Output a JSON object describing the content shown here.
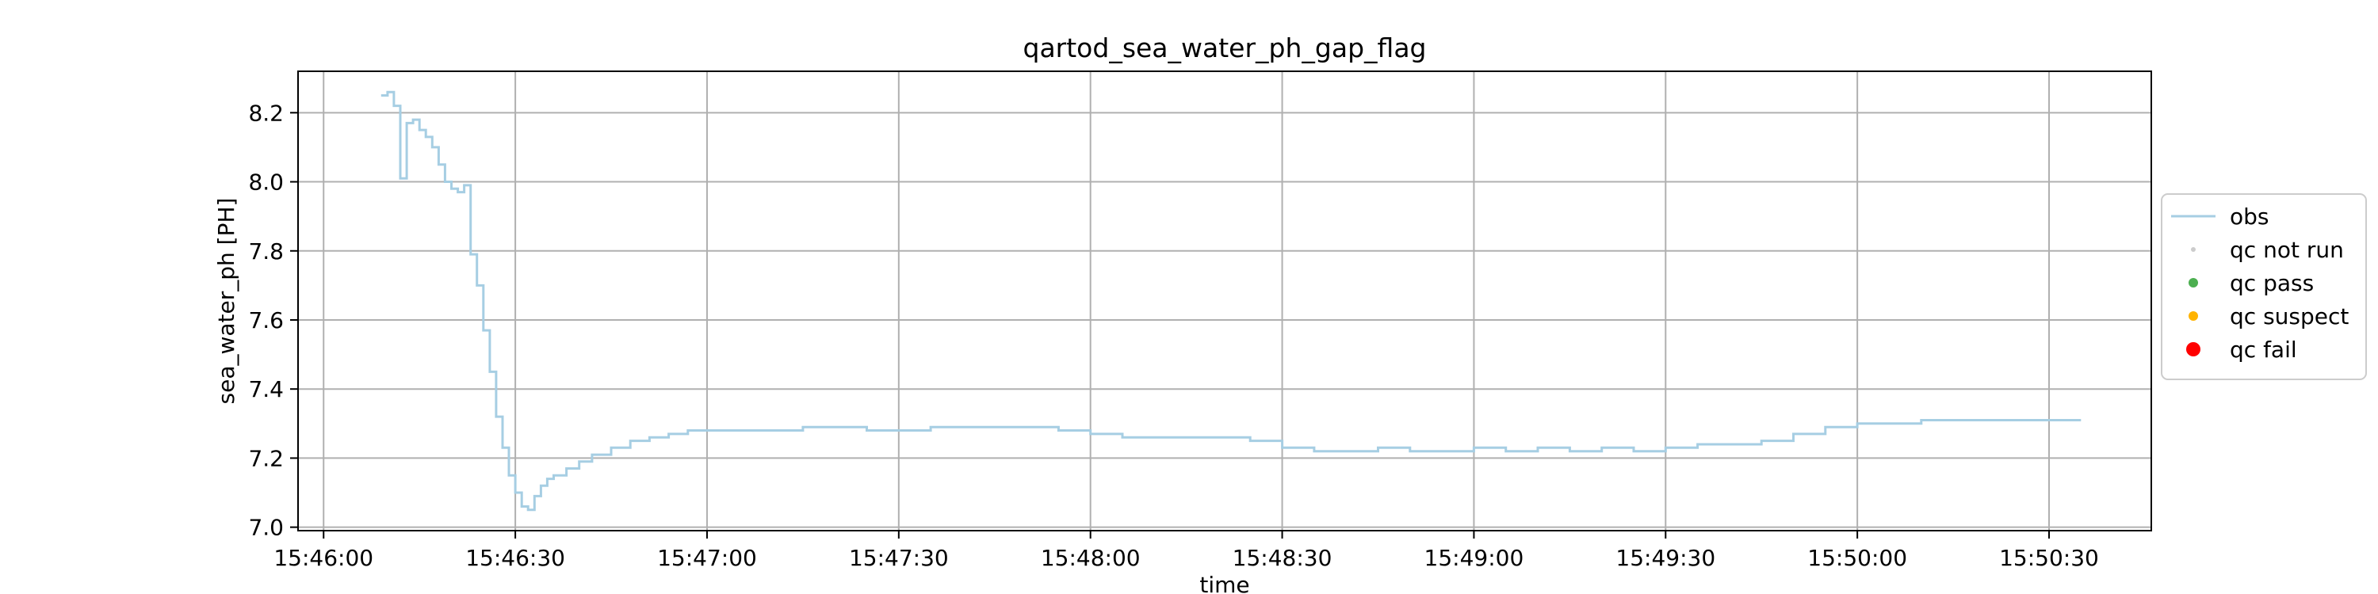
{
  "chart_data": {
    "type": "line",
    "title": "qartod_sea_water_ph_gap_flag",
    "xlabel": "time",
    "ylabel": "sea_water_ph [PH]",
    "x_unit": "time of day (HH:MM:SS)",
    "xlim": [
      "15:45:56",
      "15:50:46"
    ],
    "ylim": [
      6.99,
      8.32
    ],
    "x_ticks": [
      "15:46:00",
      "15:46:30",
      "15:47:00",
      "15:47:30",
      "15:48:00",
      "15:48:30",
      "15:49:00",
      "15:49:30",
      "15:50:00",
      "15:50:30"
    ],
    "y_ticks": [
      7.0,
      7.2,
      7.4,
      7.6,
      7.8,
      8.0,
      8.2
    ],
    "grid": true,
    "legend_position": "center-right-outside",
    "series": [
      {
        "name": "obs",
        "color": "#a6cee3",
        "x": [
          "15:46:09",
          "15:46:10",
          "15:46:11",
          "15:46:12",
          "15:46:13",
          "15:46:14",
          "15:46:15",
          "15:46:16",
          "15:46:17",
          "15:46:18",
          "15:46:19",
          "15:46:20",
          "15:46:21",
          "15:46:22",
          "15:46:23",
          "15:46:24",
          "15:46:25",
          "15:46:26",
          "15:46:27",
          "15:46:28",
          "15:46:29",
          "15:46:30",
          "15:46:31",
          "15:46:32",
          "15:46:33",
          "15:46:34",
          "15:46:35",
          "15:46:36",
          "15:46:38",
          "15:46:40",
          "15:46:42",
          "15:46:45",
          "15:46:48",
          "15:46:51",
          "15:46:54",
          "15:46:57",
          "15:47:00",
          "15:47:05",
          "15:47:10",
          "15:47:15",
          "15:47:20",
          "15:47:25",
          "15:47:30",
          "15:47:35",
          "15:47:40",
          "15:47:45",
          "15:47:50",
          "15:47:55",
          "15:48:00",
          "15:48:05",
          "15:48:10",
          "15:48:15",
          "15:48:20",
          "15:48:25",
          "15:48:30",
          "15:48:35",
          "15:48:40",
          "15:48:45",
          "15:48:50",
          "15:48:55",
          "15:49:00",
          "15:49:05",
          "15:49:10",
          "15:49:15",
          "15:49:20",
          "15:49:25",
          "15:49:30",
          "15:49:35",
          "15:49:40",
          "15:49:45",
          "15:49:50",
          "15:49:55",
          "15:50:00",
          "15:50:05",
          "15:50:10",
          "15:50:15",
          "15:50:20",
          "15:50:25",
          "15:50:30",
          "15:50:35"
        ],
        "y": [
          8.25,
          8.26,
          8.22,
          8.01,
          8.17,
          8.18,
          8.15,
          8.13,
          8.1,
          8.05,
          8.0,
          7.98,
          7.97,
          7.99,
          7.79,
          7.7,
          7.57,
          7.45,
          7.32,
          7.23,
          7.15,
          7.1,
          7.06,
          7.05,
          7.09,
          7.12,
          7.14,
          7.15,
          7.17,
          7.19,
          7.21,
          7.23,
          7.25,
          7.26,
          7.27,
          7.28,
          7.28,
          7.28,
          7.28,
          7.29,
          7.29,
          7.28,
          7.28,
          7.29,
          7.29,
          7.29,
          7.29,
          7.28,
          7.27,
          7.26,
          7.26,
          7.26,
          7.26,
          7.25,
          7.23,
          7.22,
          7.22,
          7.23,
          7.22,
          7.22,
          7.23,
          7.22,
          7.23,
          7.22,
          7.23,
          7.22,
          7.23,
          7.24,
          7.24,
          7.25,
          7.27,
          7.29,
          7.3,
          7.3,
          7.31,
          7.31,
          7.31,
          7.31,
          7.31,
          7.31
        ]
      }
    ],
    "legend": [
      {
        "label": "obs",
        "kind": "line",
        "color": "#a6cee3"
      },
      {
        "label": "qc not run",
        "kind": "dot",
        "color": "#cccccc",
        "size": "small"
      },
      {
        "label": "qc pass",
        "kind": "dot",
        "color": "#4caf50",
        "size": "medium"
      },
      {
        "label": "qc suspect",
        "kind": "dot",
        "color": "#ffb300",
        "size": "medium"
      },
      {
        "label": "qc fail",
        "kind": "dot",
        "color": "#ff0000",
        "size": "large"
      }
    ]
  }
}
